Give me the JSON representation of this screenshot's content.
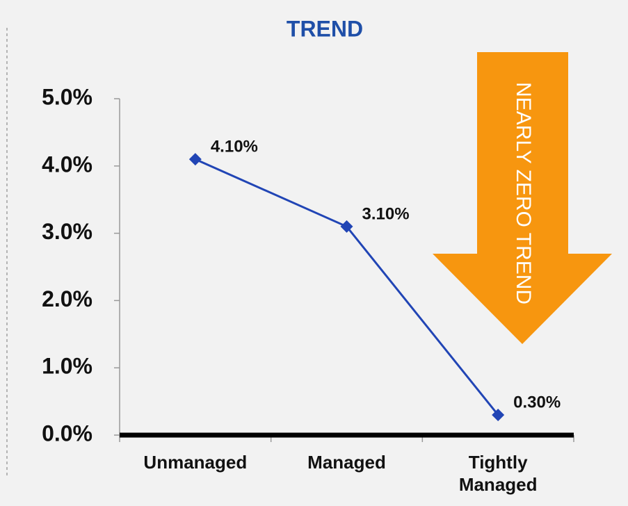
{
  "chart_data": {
    "type": "line",
    "title": "TREND",
    "categories": [
      "Unmanaged",
      "Managed",
      "Tightly Managed"
    ],
    "series": [
      {
        "name": "Trend",
        "color": "#2145b5",
        "values": [
          4.1,
          3.1,
          0.3
        ],
        "value_labels": [
          "4.10%",
          "3.10%",
          "0.30%"
        ]
      }
    ],
    "ylim": [
      0,
      5
    ],
    "yticks": [
      {
        "value": 0,
        "label": "0.0%"
      },
      {
        "value": 1,
        "label": "1.0%"
      },
      {
        "value": 2,
        "label": "2.0%"
      },
      {
        "value": 3,
        "label": "3.0%"
      },
      {
        "value": 4,
        "label": "4.0%"
      },
      {
        "value": 5,
        "label": "5.0%"
      }
    ],
    "annotations": [
      {
        "text": "NEARLY ZERO TREND",
        "color": "#f7960f"
      }
    ]
  }
}
